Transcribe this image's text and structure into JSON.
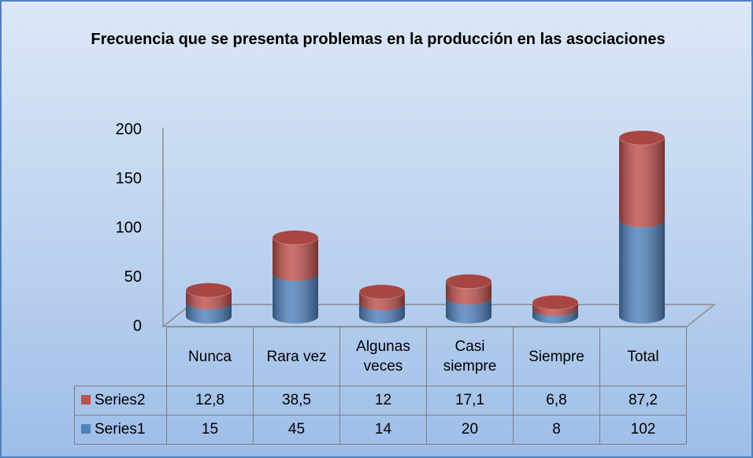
{
  "chart_data": {
    "type": "stacked-cylinder",
    "title": "Frecuencia que se presenta problemas en la producción en las asociaciones",
    "categories": [
      "Nunca",
      "Rara vez",
      "Algunas veces",
      "Casi siempre",
      "Siempre",
      "Total"
    ],
    "series": [
      {
        "name": "Series1",
        "color": "#4f81bd",
        "values": [
          15,
          45,
          14,
          20,
          8,
          102
        ]
      },
      {
        "name": "Series2",
        "color": "#c0504d",
        "values": [
          12.8,
          38.5,
          12,
          17.1,
          6.8,
          87.2
        ],
        "value_labels": [
          "12,8",
          "38,5",
          "12",
          "17,1",
          "6,8",
          "87,2"
        ]
      }
    ],
    "ylim": [
      0,
      200
    ],
    "yticks": [
      0,
      50,
      100,
      150,
      200
    ],
    "grid": false
  }
}
